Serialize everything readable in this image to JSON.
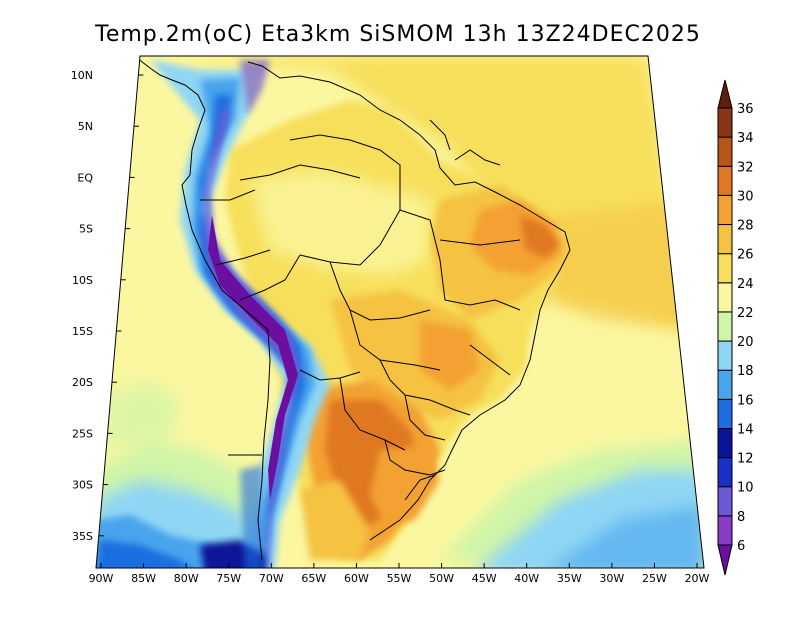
{
  "title": "Temp.2m(oC) Eta3km SiSMOM 13h 13Z24DEC2025",
  "map": {
    "lat_ticks": [
      "10N",
      "5N",
      "EQ",
      "5S",
      "10S",
      "15S",
      "20S",
      "25S",
      "30S",
      "35S"
    ],
    "lon_ticks": [
      "90W",
      "85W",
      "80W",
      "75W",
      "70W",
      "65W",
      "60W",
      "55W",
      "50W",
      "45W",
      "40W",
      "35W",
      "30W",
      "25W",
      "20W"
    ],
    "lon_range_deg": [
      -90,
      -20
    ],
    "lat_range_deg": [
      -38,
      10
    ]
  },
  "colorbar": {
    "labels": [
      "6",
      "8",
      "10",
      "12",
      "14",
      "16",
      "18",
      "20",
      "22",
      "24",
      "26",
      "28",
      "30",
      "32",
      "34",
      "36"
    ],
    "colors": [
      "#6a0fa0",
      "#8a3cc8",
      "#6a5ad6",
      "#1a2fc8",
      "#0a1496",
      "#1e6ee0",
      "#4aa4ec",
      "#8fd6f5",
      "#cff5a8",
      "#fbf7a0",
      "#f7df5c",
      "#f5c242",
      "#f3a133",
      "#e07822",
      "#b8561a",
      "#8a3514",
      "#5e1f0c"
    ]
  }
}
